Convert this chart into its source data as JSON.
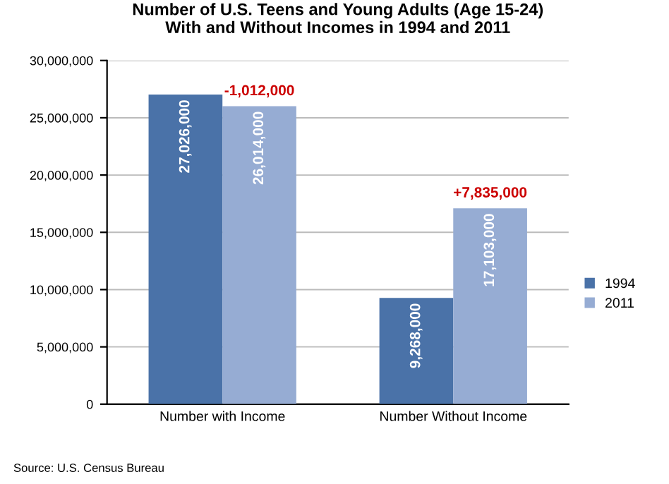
{
  "chart_data": {
    "type": "bar",
    "title": "Number of U.S. Teens and Young Adults (Age 15-24)\nWith and Without Incomes in 1994 and 2011",
    "categories": [
      "Number with Income",
      "Number Without Income"
    ],
    "series": [
      {
        "name": "1994",
        "color": "#4a72a8",
        "values": [
          27026000,
          9268000
        ],
        "value_labels": [
          "27,026,000",
          "9,268,000"
        ]
      },
      {
        "name": "2011",
        "color": "#96acd3",
        "values": [
          26014000,
          17103000
        ],
        "value_labels": [
          "26,014,000",
          "17,103,000"
        ]
      }
    ],
    "ylim": [
      0,
      30000000
    ],
    "yticks": [
      0,
      {
        "value": 5000000,
        "label": "5,000,000"
      },
      {
        "value": 10000000,
        "label": "10,000,000"
      },
      {
        "value": 15000000,
        "label": "15,000,000"
      },
      {
        "value": 20000000,
        "label": "20,000,000"
      },
      {
        "value": 25000000,
        "label": "25,000,000"
      },
      {
        "value": 30000000,
        "label": "30,000,000"
      }
    ],
    "grid": "y",
    "legend": "right",
    "annotations": [
      {
        "text": "-1,012,000",
        "x": "Number with Income",
        "y": 26014000
      },
      {
        "text": "+7,835,000",
        "x": "Number Without Income",
        "y": 17103000
      },
      "Source: U.S. Census Bureau"
    ]
  }
}
